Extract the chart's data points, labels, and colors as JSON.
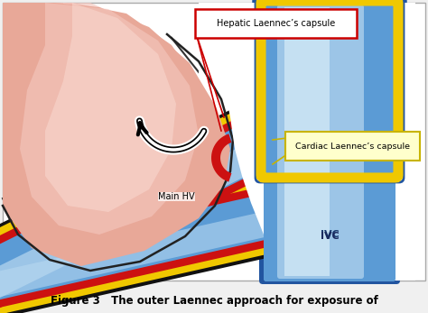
{
  "title": "Figure 3   The outer Laennec approach for exposure of",
  "title_fontsize": 8.5,
  "bg_color": "#f0f0f0",
  "white_bg": "#ffffff",
  "label_hepatic": "Hepatic Laennec’s capsule",
  "label_cardiac": "Cardiac Laennec’s capsule",
  "label_main_hv": "Main HV",
  "label_ivc": "IVC",
  "liver_pink_light": "#f5c8c0",
  "liver_pink_mid": "#e8a898",
  "liver_pink_dark": "#d08878",
  "ivc_blue_mid": "#5b9bd5",
  "ivc_blue_light": "#b8d8f0",
  "ivc_blue_dark": "#3a7abf",
  "ivc_blue_darker": "#2255a0",
  "yellow_capsule": "#f0c800",
  "red_vessel": "#cc1111",
  "dark_outline": "#111111",
  "arrow_red": "#cc0000",
  "arrow_yellow": "#c8b400",
  "cardiac_box_fill": "#ffffcc",
  "cardiac_box_border": "#c8b400",
  "hepatic_box_fill": "#ffffff",
  "hepatic_box_border": "#cc0000"
}
